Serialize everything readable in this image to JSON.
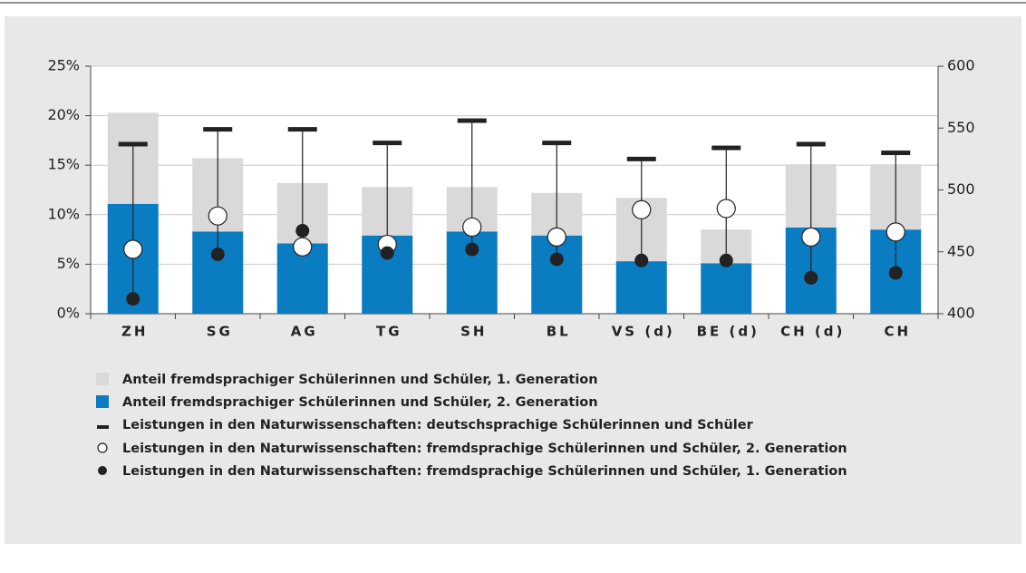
{
  "chart_data": {
    "type": "bar",
    "categories": [
      "ZH",
      "SG",
      "AG",
      "TG",
      "SH",
      "BL",
      "VS (d)",
      "BE (d)",
      "CH (d)",
      "CH"
    ],
    "series": [
      {
        "name": "Anteil fremdsprachiger Schülerinnen und Schüler, 1. Generation",
        "color": "#d9d9d9",
        "marker": "bar",
        "values": [
          9.2,
          7.4,
          6.1,
          4.9,
          4.5,
          4.3,
          6.4,
          3.4,
          6.4,
          6.6
        ]
      },
      {
        "name": "Anteil fremdsprachiger Schülerinnen und Schüler, 2. Generation",
        "color": "#0a7cc1",
        "marker": "bar",
        "values": [
          11.1,
          8.3,
          7.1,
          7.9,
          8.3,
          7.9,
          5.3,
          5.1,
          8.7,
          8.5
        ]
      },
      {
        "name": "Leistungen in den Naturwissenschaften: deutschsprachige Schülerinnen und Schüler",
        "color": "#222222",
        "marker": "dash",
        "axis": "y2",
        "values": [
          537,
          549,
          549,
          538,
          556,
          538,
          525,
          534,
          537,
          530
        ]
      },
      {
        "name": "Leistungen in den Naturwissenschaften: fremdsprachige Schülerinnen und Schüler, 2. Generation",
        "color": "#ffffff",
        "marker": "open-circle",
        "axis": "y2",
        "values": [
          452,
          479,
          454,
          456,
          470,
          462,
          484,
          485,
          462,
          466
        ]
      },
      {
        "name": "Leistungen in den Naturwissenschaften: fremdsprachige Schülerinnen und Schüler, 1. Generation",
        "color": "#222222",
        "marker": "dot",
        "axis": "y2",
        "values": [
          412,
          448,
          467,
          449,
          452,
          444,
          443,
          443,
          429,
          433
        ]
      }
    ],
    "ylim": [
      0,
      25
    ],
    "yticks": [
      {
        "value": 0,
        "label": "0%"
      },
      {
        "value": 5,
        "label": "5%"
      },
      {
        "value": 10,
        "label": "10%"
      },
      {
        "value": 15,
        "label": "15%"
      },
      {
        "value": 20,
        "label": "20%"
      },
      {
        "value": 25,
        "label": "25%"
      }
    ],
    "y2lim": [
      400,
      600
    ],
    "y2ticks": [
      400,
      450,
      500,
      550,
      600
    ],
    "grid": true
  }
}
